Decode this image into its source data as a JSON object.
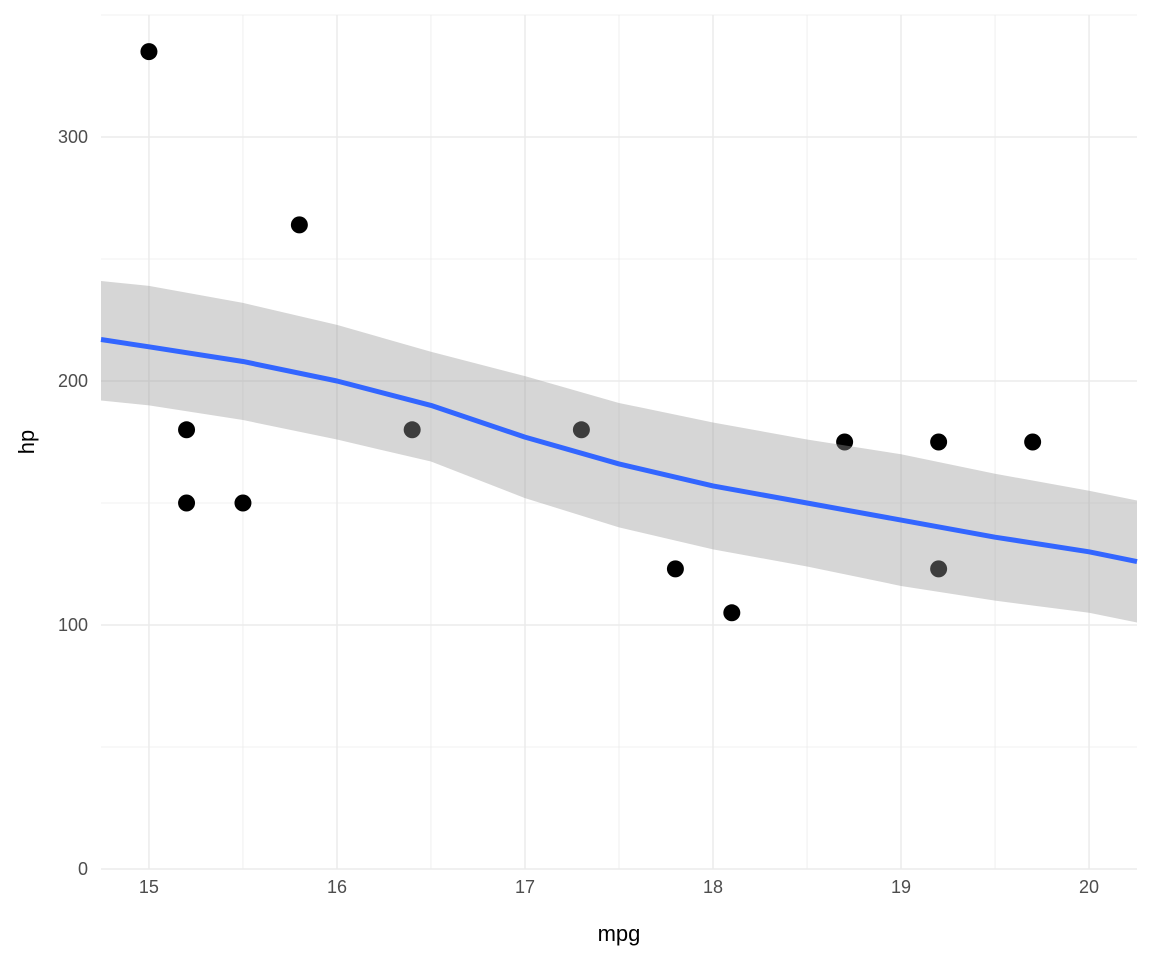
{
  "chart_data": {
    "type": "scatter",
    "title": "",
    "xlabel": "mpg",
    "ylabel": "hp",
    "xlim": [
      14.745,
      20.255
    ],
    "ylim": [
      0,
      350
    ],
    "grid": true,
    "x_ticks": [
      15,
      16,
      17,
      18,
      19,
      20
    ],
    "x_tick_labels": [
      "15",
      "16",
      "17",
      "18",
      "19",
      "20"
    ],
    "y_ticks": [
      0,
      100,
      200,
      300
    ],
    "y_tick_labels": [
      "0",
      "100",
      "200",
      "300"
    ],
    "points": [
      {
        "x": 15.0,
        "y": 335
      },
      {
        "x": 15.2,
        "y": 180
      },
      {
        "x": 15.2,
        "y": 150
      },
      {
        "x": 15.5,
        "y": 150
      },
      {
        "x": 15.8,
        "y": 264
      },
      {
        "x": 16.4,
        "y": 180
      },
      {
        "x": 17.3,
        "y": 180
      },
      {
        "x": 17.8,
        "y": 123
      },
      {
        "x": 18.1,
        "y": 105
      },
      {
        "x": 18.7,
        "y": 175
      },
      {
        "x": 19.2,
        "y": 175
      },
      {
        "x": 19.2,
        "y": 123
      },
      {
        "x": 19.7,
        "y": 175
      }
    ],
    "smooth": {
      "method": "loess",
      "x": [
        14.745,
        15.0,
        15.5,
        16.0,
        16.5,
        17.0,
        17.5,
        18.0,
        18.5,
        19.0,
        19.5,
        20.0,
        20.255
      ],
      "fit": [
        217,
        214,
        208,
        200,
        190,
        177,
        166,
        157,
        150,
        143,
        136,
        130,
        126
      ],
      "upper": [
        241,
        239,
        232,
        223,
        212,
        202,
        191,
        183,
        176,
        170,
        162,
        155,
        151
      ],
      "lower": [
        192,
        190,
        184,
        176,
        167,
        152,
        140,
        131,
        124,
        116,
        110,
        105,
        101
      ]
    },
    "colors": {
      "points": "#000000",
      "line": "#3366FF",
      "ribbon": "#999999",
      "grid": "#EBEBEB"
    }
  }
}
